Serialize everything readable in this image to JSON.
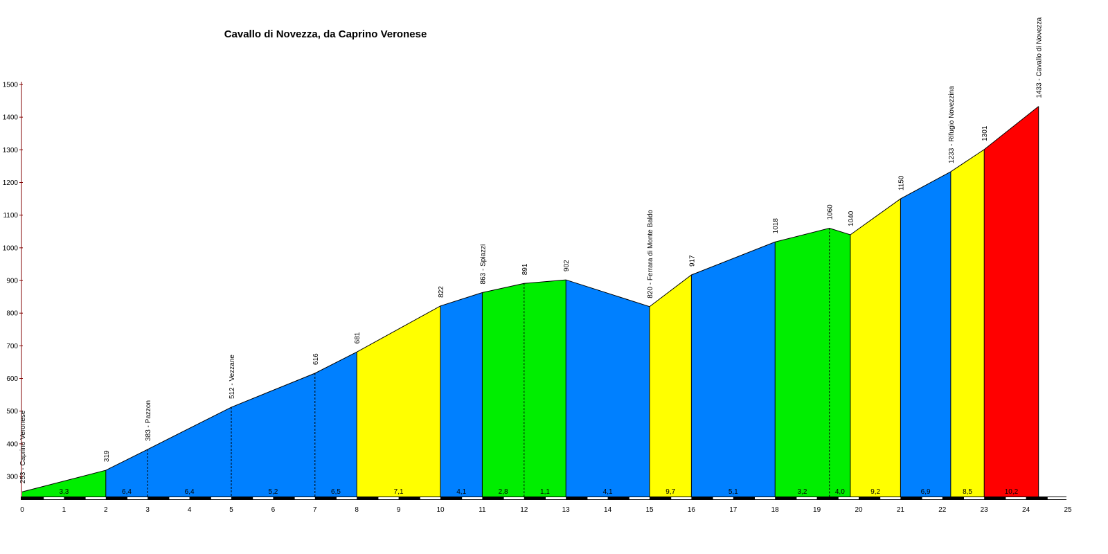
{
  "chart_data": {
    "type": "area",
    "title": "Cavallo di Novezza, da Caprino Veronese",
    "xlabel": "",
    "ylabel": "",
    "xlim": [
      0,
      25
    ],
    "ylim": [
      230,
      1500
    ],
    "x_ticks": [
      0,
      1,
      2,
      3,
      4,
      5,
      6,
      7,
      8,
      9,
      10,
      11,
      12,
      13,
      14,
      15,
      16,
      17,
      18,
      19,
      20,
      21,
      22,
      23,
      24,
      25
    ],
    "y_ticks": [
      300,
      400,
      500,
      600,
      700,
      800,
      900,
      1000,
      1100,
      1200,
      1300,
      1400,
      1500
    ],
    "profile": [
      {
        "x": 0,
        "y": 253
      },
      {
        "x": 2,
        "y": 319
      },
      {
        "x": 3,
        "y": 383
      },
      {
        "x": 5,
        "y": 512
      },
      {
        "x": 7,
        "y": 616
      },
      {
        "x": 8,
        "y": 681
      },
      {
        "x": 10,
        "y": 822
      },
      {
        "x": 11,
        "y": 863
      },
      {
        "x": 12,
        "y": 891
      },
      {
        "x": 13,
        "y": 902
      },
      {
        "x": 15,
        "y": 820
      },
      {
        "x": 16,
        "y": 917
      },
      {
        "x": 18,
        "y": 1018
      },
      {
        "x": 19.3,
        "y": 1060
      },
      {
        "x": 19.8,
        "y": 1040
      },
      {
        "x": 21,
        "y": 1150
      },
      {
        "x": 22.2,
        "y": 1233
      },
      {
        "x": 23,
        "y": 1301
      },
      {
        "x": 24.3,
        "y": 1433
      }
    ],
    "segments": [
      {
        "x0": 0,
        "x1": 2,
        "grad": "3,3",
        "color": "#00ee00"
      },
      {
        "x0": 2,
        "x1": 3,
        "grad": "6,4",
        "color": "#0080ff"
      },
      {
        "x0": 3,
        "x1": 5,
        "grad": "6,4",
        "color": "#0080ff"
      },
      {
        "x0": 5,
        "x1": 7,
        "grad": "5,2",
        "color": "#0080ff"
      },
      {
        "x0": 7,
        "x1": 8,
        "grad": "6,5",
        "color": "#0080ff"
      },
      {
        "x0": 8,
        "x1": 10,
        "grad": "7,1",
        "color": "#ffff00"
      },
      {
        "x0": 10,
        "x1": 11,
        "grad": "4,1",
        "color": "#0080ff"
      },
      {
        "x0": 11,
        "x1": 12,
        "grad": "2,8",
        "color": "#00ee00"
      },
      {
        "x0": 12,
        "x1": 13,
        "grad": "1,1",
        "color": "#00ee00"
      },
      {
        "x0": 13,
        "x1": 15,
        "grad": "4,1",
        "color": "#0080ff"
      },
      {
        "x0": 15,
        "x1": 16,
        "grad": "9,7",
        "color": "#ffff00"
      },
      {
        "x0": 16,
        "x1": 18,
        "grad": "5,1",
        "color": "#0080ff"
      },
      {
        "x0": 18,
        "x1": 19.3,
        "grad": "3,2",
        "color": "#00ee00"
      },
      {
        "x0": 19.3,
        "x1": 19.8,
        "grad": "4,0",
        "color": "#00ee00"
      },
      {
        "x0": 19.8,
        "x1": 21,
        "grad": "9,2",
        "color": "#ffff00"
      },
      {
        "x0": 21,
        "x1": 22.2,
        "grad": "6,9",
        "color": "#0080ff"
      },
      {
        "x0": 22.2,
        "x1": 23,
        "grad": "8,5",
        "color": "#ffff00"
      },
      {
        "x0": 23,
        "x1": 24.3,
        "grad": "10,2",
        "color": "#ff0000"
      }
    ],
    "point_labels": [
      {
        "x": 0,
        "y": 253,
        "text": "253 - Caprino Veronese"
      },
      {
        "x": 2,
        "y": 319,
        "text": "319"
      },
      {
        "x": 3,
        "y": 383,
        "text": "383 - Pazzon"
      },
      {
        "x": 5,
        "y": 512,
        "text": "512 - Vezzane"
      },
      {
        "x": 7,
        "y": 616,
        "text": "616"
      },
      {
        "x": 8,
        "y": 681,
        "text": "681"
      },
      {
        "x": 10,
        "y": 822,
        "text": "822"
      },
      {
        "x": 11,
        "y": 863,
        "text": "863 - Spiazzi"
      },
      {
        "x": 12,
        "y": 891,
        "text": "891"
      },
      {
        "x": 13,
        "y": 902,
        "text": "902"
      },
      {
        "x": 15,
        "y": 820,
        "text": "820 - Ferrara di Monte Baldo"
      },
      {
        "x": 16,
        "y": 917,
        "text": "917"
      },
      {
        "x": 18,
        "y": 1018,
        "text": "1018"
      },
      {
        "x": 19.3,
        "y": 1060,
        "text": "1060"
      },
      {
        "x": 19.8,
        "y": 1040,
        "text": "1040"
      },
      {
        "x": 21,
        "y": 1150,
        "text": "1150"
      },
      {
        "x": 22.2,
        "y": 1233,
        "text": "1233 - Rifugio Novezzina"
      },
      {
        "x": 23,
        "y": 1301,
        "text": "1301"
      },
      {
        "x": 24.3,
        "y": 1433,
        "text": "1433 - Cavallo di Novezza"
      }
    ]
  },
  "colors": {
    "easy": "#00ee00",
    "moderate": "#0080ff",
    "hard": "#ffff00",
    "very_hard": "#ff0000",
    "axis_y": "#800000",
    "axis_x": "#000000"
  }
}
